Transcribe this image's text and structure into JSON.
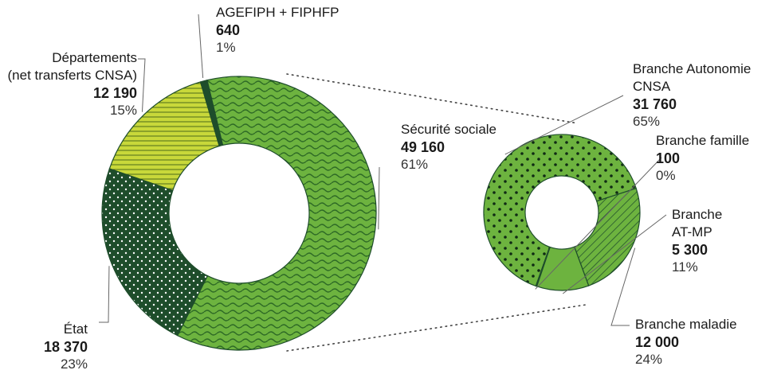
{
  "chart_data": [
    {
      "type": "donut",
      "slices": [
        {
          "name": "Sécurité sociale",
          "value": "49 160",
          "percent": "61%",
          "num": 49160,
          "color": "#6db33f",
          "pattern": "waves"
        },
        {
          "name": "État",
          "value": "18 370",
          "percent": "23%",
          "num": 18370,
          "color": "#1e4d2b",
          "pattern": "dots"
        },
        {
          "name": "Départements\n(net transferts CNSA)",
          "value": "12 190",
          "percent": "15%",
          "num": 12190,
          "color": "#c8d83a",
          "pattern": "hlines"
        },
        {
          "name": "AGEFIPH + FIPHFP",
          "value": "640",
          "percent": "1%",
          "num": 640,
          "color": "#1e4d2b",
          "pattern": "solid"
        }
      ]
    },
    {
      "type": "donut",
      "slices": [
        {
          "name": "Branche Autonomie\nCNSA",
          "value": "31 760",
          "percent": "65%",
          "num": 31760,
          "color": "#6db33f",
          "pattern": "dots"
        },
        {
          "name": "Branche famille",
          "value": "100",
          "percent": "0%",
          "num": 100,
          "color": "#6db33f",
          "pattern": "solid"
        },
        {
          "name": "Branche\nAT-MP",
          "value": "5 300",
          "percent": "11%",
          "num": 5300,
          "color": "#6db33f",
          "pattern": "solid"
        },
        {
          "name": "Branche maladie",
          "value": "12 000",
          "percent": "24%",
          "num": 12000,
          "color": "#6db33f",
          "pattern": "diag"
        }
      ]
    }
  ],
  "colors": {
    "border": "#1e4d2b",
    "leader": "#666666",
    "connector": "#444444"
  }
}
